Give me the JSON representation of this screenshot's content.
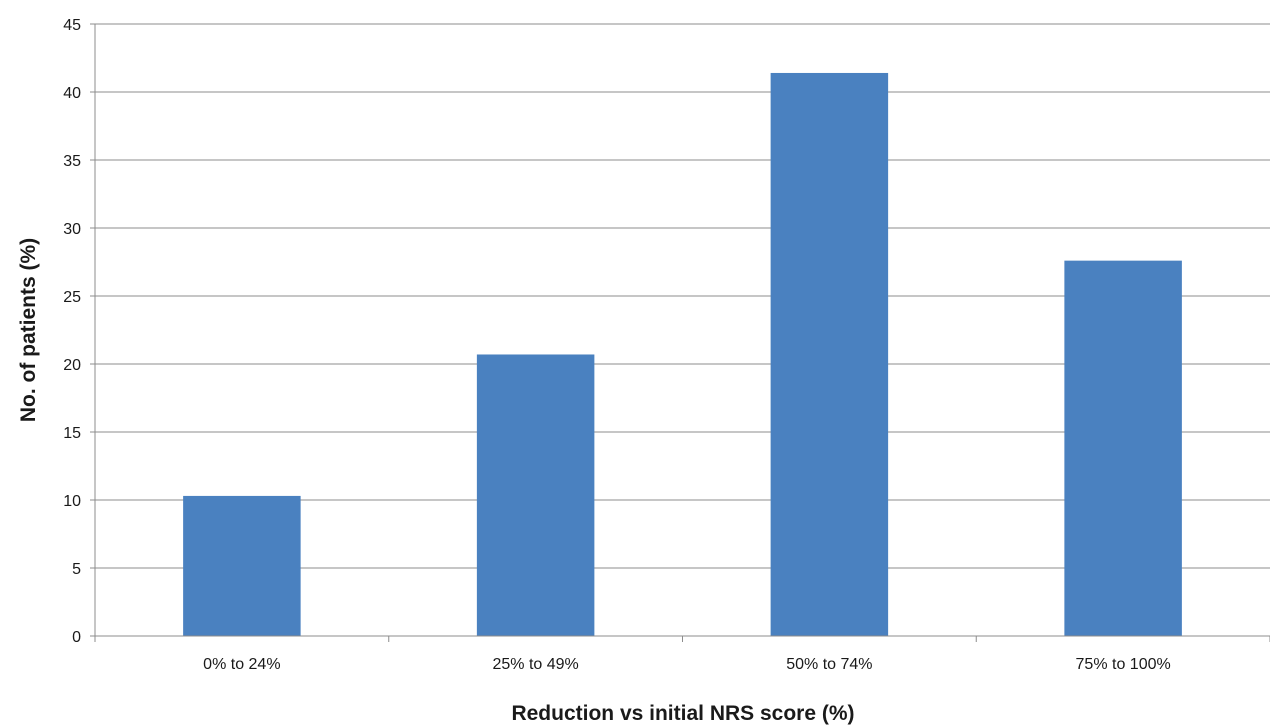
{
  "chart_data": {
    "type": "bar",
    "title": "",
    "xlabel": "Reduction vs initial NRS score (%)",
    "ylabel": "No. of patients (%)",
    "categories": [
      "0% to 24%",
      "25% to 49%",
      "50% to 74%",
      "75% to 100%"
    ],
    "values": [
      10.3,
      20.7,
      41.4,
      27.6
    ],
    "ylim": [
      0,
      45
    ],
    "yticks": [
      0,
      5,
      10,
      15,
      20,
      25,
      30,
      35,
      40,
      45
    ],
    "ytick_labels": [
      "0",
      "5",
      "10",
      "15",
      "20",
      "25",
      "30",
      "35",
      "40",
      "45"
    ],
    "grid": true,
    "legend": "none",
    "bar_color": "#4a81c0"
  }
}
